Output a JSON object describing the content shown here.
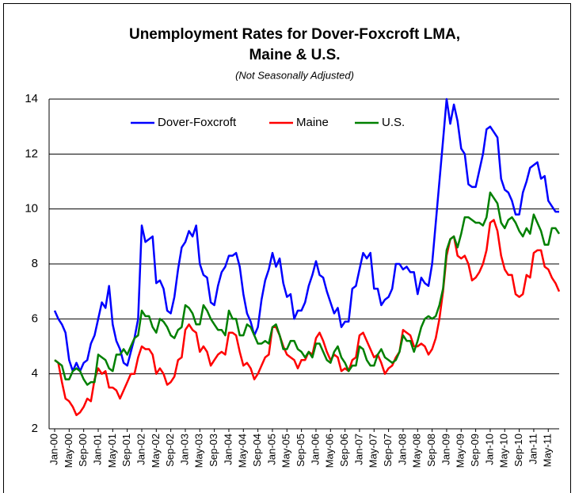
{
  "chart_data": {
    "type": "line",
    "title": [
      "Unemployment Rates for Dover-Foxcroft LMA,",
      "Maine & U.S."
    ],
    "subtitle": "(Not Seasonally Adjusted)",
    "legend": "top",
    "grid": true,
    "ylim": [
      2,
      14
    ],
    "yticks": [
      2,
      4,
      6,
      8,
      10,
      12,
      14
    ],
    "categories": [
      "Jan-00",
      null,
      null,
      null,
      "May-00",
      null,
      null,
      null,
      "Sep-00",
      null,
      null,
      null,
      "Jan-01",
      null,
      null,
      null,
      "May-01",
      null,
      null,
      null,
      "Sep-01",
      null,
      null,
      null,
      "Jan-02",
      null,
      null,
      null,
      "May-02",
      null,
      null,
      null,
      "Sep-02",
      null,
      null,
      null,
      "Jan-03",
      null,
      null,
      null,
      "May-03",
      null,
      null,
      null,
      "Sep-03",
      null,
      null,
      null,
      "Jan-04",
      null,
      null,
      null,
      "May-04",
      null,
      null,
      null,
      "Sep-04",
      null,
      null,
      null,
      "Jan-05",
      null,
      null,
      null,
      "May-05",
      null,
      null,
      null,
      "Sep-05",
      null,
      null,
      null,
      "Jan-06",
      null,
      null,
      null,
      "May-06",
      null,
      null,
      null,
      "Sep-06",
      null,
      null,
      null,
      "Jan-07",
      null,
      null,
      null,
      "May-07",
      null,
      null,
      null,
      "Sep-07",
      null,
      null,
      null,
      "Jan-08",
      null,
      null,
      null,
      "May-08",
      null,
      null,
      null,
      "Sep-08",
      null,
      null,
      null,
      "Jan-09",
      null,
      null,
      null,
      "May-09",
      null,
      null,
      null,
      "Sep-09",
      null,
      null,
      null,
      "Jan-10",
      null,
      null,
      null,
      "May-10",
      null,
      null,
      null,
      "Sep-10",
      null,
      null,
      null,
      "Jan-11",
      null,
      null,
      null,
      "May-11",
      null,
      null,
      null
    ],
    "series": [
      {
        "name": "Dover-Foxcroft",
        "color": "#0000ff",
        "values": [
          6.3,
          6.0,
          5.8,
          5.5,
          4.5,
          4.1,
          4.4,
          4.1,
          4.4,
          4.5,
          5.1,
          5.4,
          6.0,
          6.6,
          6.4,
          7.2,
          5.8,
          5.2,
          4.9,
          4.4,
          4.3,
          4.8,
          5.3,
          6.0,
          9.4,
          8.8,
          8.9,
          9.0,
          7.3,
          7.4,
          7.1,
          6.3,
          6.2,
          6.8,
          7.8,
          8.6,
          8.8,
          9.2,
          9.0,
          9.4,
          8.0,
          7.6,
          7.5,
          6.6,
          6.5,
          7.2,
          7.7,
          7.9,
          8.3,
          8.3,
          8.4,
          7.9,
          6.9,
          6.2,
          5.9,
          5.4,
          5.7,
          6.7,
          7.4,
          7.8,
          8.4,
          7.9,
          8.2,
          7.3,
          6.8,
          6.9,
          6.0,
          6.3,
          6.3,
          6.6,
          7.2,
          7.6,
          8.1,
          7.6,
          7.5,
          7.0,
          6.6,
          6.2,
          6.4,
          5.7,
          5.9,
          5.9,
          7.1,
          7.2,
          7.8,
          8.4,
          8.2,
          8.4,
          7.1,
          7.1,
          6.5,
          6.7,
          6.8,
          7.1,
          8.0,
          8.0,
          7.8,
          7.9,
          7.7,
          7.7,
          6.9,
          7.5,
          7.3,
          7.2,
          8.0,
          9.5,
          11.0,
          12.5,
          14.0,
          13.1,
          13.8,
          13.2,
          12.2,
          12.0,
          10.9,
          10.8,
          10.8,
          11.4,
          12.0,
          12.9,
          13.0,
          12.8,
          12.6,
          11.1,
          10.7,
          10.6,
          10.3,
          9.8,
          9.8,
          10.6,
          11.0,
          11.5,
          11.6,
          11.7,
          11.1,
          11.2,
          10.3,
          10.1,
          9.9,
          9.9
        ]
      },
      {
        "name": "Maine",
        "color": "#ff0000",
        "values": [
          4.5,
          4.4,
          3.7,
          3.1,
          3.0,
          2.8,
          2.5,
          2.6,
          2.8,
          3.1,
          3.0,
          3.8,
          4.2,
          4.0,
          4.1,
          3.5,
          3.5,
          3.4,
          3.1,
          3.4,
          3.7,
          4.0,
          4.0,
          4.6,
          5.0,
          4.9,
          4.9,
          4.7,
          4.0,
          4.2,
          4.0,
          3.6,
          3.7,
          3.9,
          4.5,
          4.6,
          5.6,
          5.8,
          5.6,
          5.5,
          4.8,
          5.0,
          4.8,
          4.3,
          4.5,
          4.7,
          4.8,
          4.7,
          5.5,
          5.5,
          5.4,
          4.8,
          4.3,
          4.4,
          4.2,
          3.8,
          4.0,
          4.3,
          4.6,
          4.7,
          5.7,
          5.7,
          5.4,
          5.0,
          4.7,
          4.6,
          4.5,
          4.2,
          4.5,
          4.5,
          4.8,
          4.7,
          5.3,
          5.5,
          5.2,
          4.8,
          4.5,
          4.7,
          4.6,
          4.1,
          4.2,
          4.1,
          4.5,
          4.6,
          5.4,
          5.5,
          5.2,
          4.9,
          4.6,
          4.7,
          4.4,
          4.0,
          4.2,
          4.3,
          4.6,
          4.8,
          5.6,
          5.5,
          5.4,
          5.0,
          5.0,
          5.1,
          5.0,
          4.7,
          4.9,
          5.3,
          6.0,
          7.0,
          8.3,
          8.9,
          9.0,
          8.3,
          8.2,
          8.3,
          8.0,
          7.4,
          7.5,
          7.7,
          8.0,
          8.5,
          9.5,
          9.6,
          9.2,
          8.3,
          7.8,
          7.6,
          7.6,
          6.9,
          6.8,
          6.9,
          7.6,
          7.5,
          8.4,
          8.5,
          8.5,
          7.9,
          7.8,
          7.5,
          7.3,
          7.0
        ]
      },
      {
        "name": "U.S.",
        "color": "#008000",
        "values": [
          4.5,
          4.4,
          4.3,
          3.8,
          3.8,
          4.1,
          4.2,
          4.1,
          3.8,
          3.6,
          3.7,
          3.7,
          4.7,
          4.6,
          4.5,
          4.2,
          4.1,
          4.7,
          4.7,
          4.9,
          4.7,
          5.0,
          5.3,
          5.4,
          6.3,
          6.1,
          6.1,
          5.7,
          5.5,
          6.0,
          5.9,
          5.7,
          5.4,
          5.3,
          5.6,
          5.7,
          6.5,
          6.4,
          6.2,
          5.8,
          5.8,
          6.5,
          6.3,
          6.0,
          5.8,
          5.6,
          5.6,
          5.4,
          6.3,
          6.0,
          6.0,
          5.4,
          5.4,
          5.8,
          5.7,
          5.4,
          5.1,
          5.1,
          5.2,
          5.1,
          5.7,
          5.8,
          5.4,
          4.9,
          4.9,
          5.2,
          5.2,
          4.9,
          4.8,
          4.6,
          4.8,
          4.6,
          5.1,
          5.1,
          4.8,
          4.5,
          4.4,
          4.8,
          5.0,
          4.6,
          4.4,
          4.1,
          4.3,
          4.3,
          5.0,
          4.9,
          4.5,
          4.3,
          4.3,
          4.7,
          4.9,
          4.6,
          4.5,
          4.4,
          4.5,
          4.8,
          5.4,
          5.2,
          5.2,
          4.8,
          5.2,
          5.7,
          6.0,
          6.1,
          6.0,
          6.1,
          6.5,
          7.1,
          8.5,
          8.9,
          9.0,
          8.6,
          9.1,
          9.7,
          9.7,
          9.6,
          9.5,
          9.5,
          9.4,
          9.7,
          10.6,
          10.4,
          10.2,
          9.5,
          9.3,
          9.6,
          9.7,
          9.5,
          9.2,
          9.0,
          9.3,
          9.1,
          9.8,
          9.5,
          9.2,
          8.7,
          8.7,
          9.3,
          9.3,
          9.1
        ]
      }
    ]
  }
}
